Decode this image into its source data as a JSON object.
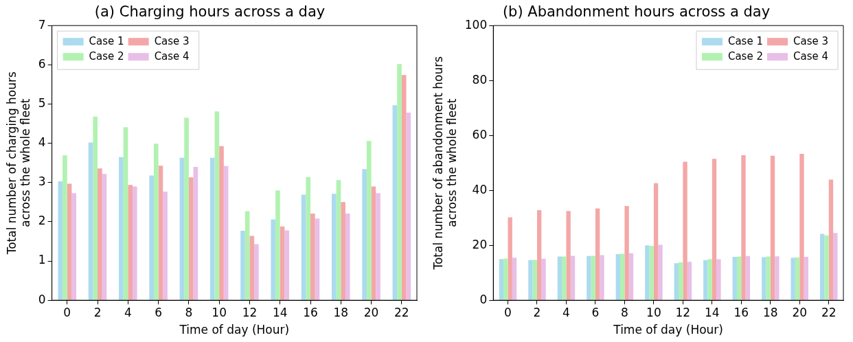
{
  "chart_data": [
    {
      "type": "bar",
      "title": "(a) Charging hours across a day",
      "xlabel": "Time of day (Hour)",
      "ylabel": "Total number of charging hours\nacross the whole fleet",
      "categories": [
        "0",
        "2",
        "4",
        "6",
        "8",
        "10",
        "12",
        "14",
        "16",
        "18",
        "20",
        "22"
      ],
      "series": [
        {
          "name": "Case 1",
          "color": "#abdbee",
          "values": [
            3.03,
            4.02,
            3.65,
            3.18,
            3.63,
            3.63,
            1.77,
            2.06,
            2.69,
            2.71,
            3.34,
            4.97
          ]
        },
        {
          "name": "Case 2",
          "color": "#b1f2b1",
          "values": [
            3.69,
            4.68,
            4.41,
            3.99,
            4.65,
            4.81,
            2.27,
            2.8,
            3.14,
            3.06,
            4.06,
            6.02
          ]
        },
        {
          "name": "Case 3",
          "color": "#f4a7a7",
          "values": [
            2.97,
            3.36,
            2.94,
            3.43,
            3.13,
            3.93,
            1.64,
            1.88,
            2.21,
            2.5,
            2.9,
            5.74
          ]
        },
        {
          "name": "Case 4",
          "color": "#e8bfe7",
          "values": [
            2.73,
            3.22,
            2.9,
            2.77,
            3.4,
            3.42,
            1.43,
            1.78,
            2.08,
            2.21,
            2.73,
            4.78
          ]
        }
      ],
      "ylim": [
        0,
        7
      ],
      "yticks": [
        0,
        1,
        2,
        3,
        4,
        5,
        6,
        7
      ],
      "grid": false,
      "legend": "top left"
    },
    {
      "type": "bar",
      "title": "(b) Abandonment hours across a day",
      "xlabel": "Time of day (Hour)",
      "ylabel": "Total number of abandonment hours\nacross the whole fleet",
      "categories": [
        "0",
        "2",
        "4",
        "6",
        "8",
        "10",
        "12",
        "14",
        "16",
        "18",
        "20",
        "22"
      ],
      "series": [
        {
          "name": "Case 1",
          "color": "#abdbee",
          "values": [
            15.0,
            14.6,
            15.9,
            16.1,
            16.8,
            20.0,
            13.5,
            14.6,
            15.8,
            15.7,
            15.5,
            24.2
          ]
        },
        {
          "name": "Case 2",
          "color": "#b1f2b1",
          "values": [
            15.2,
            14.7,
            15.9,
            16.2,
            16.9,
            19.8,
            13.8,
            15.0,
            15.9,
            15.9,
            15.6,
            23.6
          ]
        },
        {
          "name": "Case 3",
          "color": "#f4a7a7",
          "values": [
            30.2,
            32.8,
            32.5,
            33.4,
            34.3,
            42.6,
            50.4,
            51.5,
            52.8,
            52.6,
            53.3,
            43.9
          ]
        },
        {
          "name": "Case 4",
          "color": "#e8bfe7",
          "values": [
            15.5,
            15.1,
            16.2,
            16.4,
            17.1,
            20.2,
            14.0,
            14.9,
            16.1,
            16.0,
            15.8,
            24.5
          ]
        }
      ],
      "ylim": [
        0,
        100
      ],
      "yticks": [
        0,
        20,
        40,
        60,
        80,
        100
      ],
      "grid": false,
      "legend": "top right"
    }
  ]
}
